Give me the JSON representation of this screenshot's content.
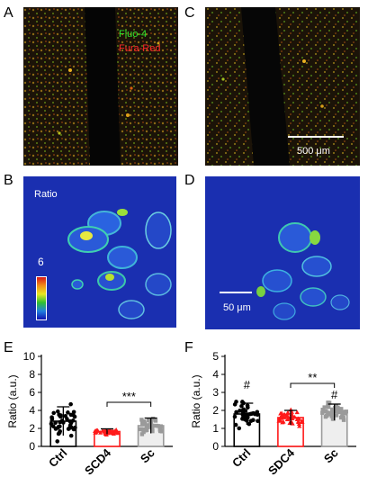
{
  "panels": {
    "A": "A",
    "B": "B",
    "C": "C",
    "D": "D",
    "E": "E",
    "F": "F"
  },
  "image_a": {
    "legend_fluo": "Fluo-4",
    "legend_fura": "Fura-Red"
  },
  "image_b": {
    "ratio_label": "Ratio",
    "colorbar_max": "6"
  },
  "image_c": {
    "scale_label": "500 μm"
  },
  "image_d": {
    "scale_label": "50 μm"
  },
  "colors": {
    "ctrl": "#000000",
    "mid": "#ff1a1a",
    "sc": "#9a9a9a"
  },
  "chart_data": [
    {
      "type": "bar",
      "panel": "E",
      "categories": [
        "Ctrl",
        "SCD4",
        "Sc"
      ],
      "values": [
        2.8,
        1.65,
        2.3
      ],
      "errors": [
        1.6,
        0.3,
        0.85
      ],
      "ylabel": "Ratio (a.u.)",
      "ylim": [
        0,
        10
      ],
      "yticks": [
        "0",
        "2",
        "4",
        "6",
        "8",
        "10"
      ],
      "significance": [
        {
          "between": [
            "SCD4",
            "Sc"
          ],
          "label": "***"
        }
      ]
    },
    {
      "type": "bar",
      "panel": "F",
      "categories": [
        "Ctrl",
        "SDC4",
        "Sc"
      ],
      "values": [
        1.8,
        1.6,
        1.9
      ],
      "errors": [
        0.6,
        0.4,
        0.45
      ],
      "ylabel": "Ratio (a.u.)",
      "ylim": [
        0,
        5
      ],
      "yticks": [
        "0",
        "1",
        "2",
        "3",
        "4",
        "5"
      ],
      "significance": [
        {
          "between": [
            "SDC4",
            "Sc"
          ],
          "label": "**"
        },
        {
          "on": "Ctrl",
          "label": "#"
        },
        {
          "on": "Sc",
          "label": "#"
        }
      ]
    }
  ]
}
